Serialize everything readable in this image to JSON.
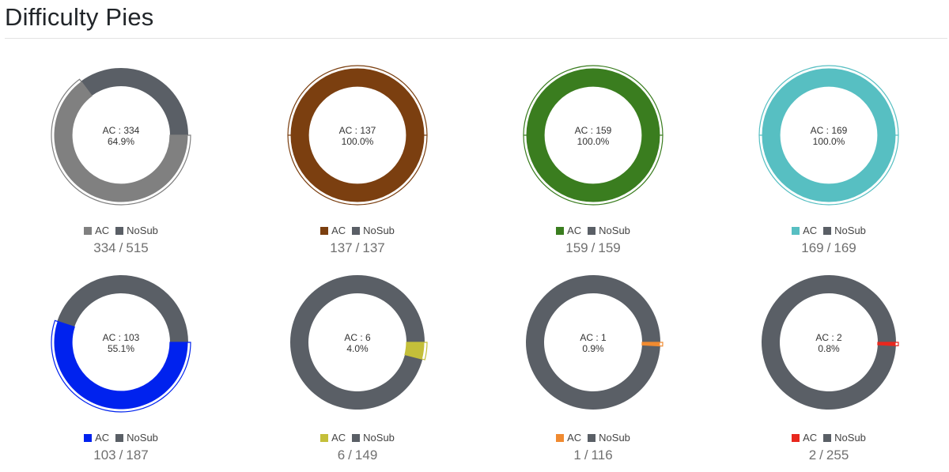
{
  "title": "Difficulty Pies",
  "legend_labels": {
    "ac": "AC",
    "nosub": "NoSub"
  },
  "nosub_color": "#5a5f66",
  "chart_data": [
    {
      "type": "pie",
      "ac": 334,
      "total": 515,
      "center_label": "AC : 334",
      "percent_label": "64.9%",
      "color": "#808080"
    },
    {
      "type": "pie",
      "ac": 137,
      "total": 137,
      "center_label": "AC : 137",
      "percent_label": "100.0%",
      "color": "#7b3f10"
    },
    {
      "type": "pie",
      "ac": 159,
      "total": 159,
      "center_label": "AC : 159",
      "percent_label": "100.0%",
      "color": "#3a7d1f"
    },
    {
      "type": "pie",
      "ac": 169,
      "total": 169,
      "center_label": "AC : 169",
      "percent_label": "100.0%",
      "color": "#57bfc2"
    },
    {
      "type": "pie",
      "ac": 103,
      "total": 187,
      "center_label": "AC : 103",
      "percent_label": "55.1%",
      "color": "#0022ee"
    },
    {
      "type": "pie",
      "ac": 6,
      "total": 149,
      "center_label": "AC : 6",
      "percent_label": "4.0%",
      "color": "#c4bf3a"
    },
    {
      "type": "pie",
      "ac": 1,
      "total": 116,
      "center_label": "AC : 1",
      "percent_label": "0.9%",
      "color": "#f08a30"
    },
    {
      "type": "pie",
      "ac": 2,
      "total": 255,
      "center_label": "AC : 2",
      "percent_label": "0.8%",
      "color": "#e8281e"
    }
  ]
}
